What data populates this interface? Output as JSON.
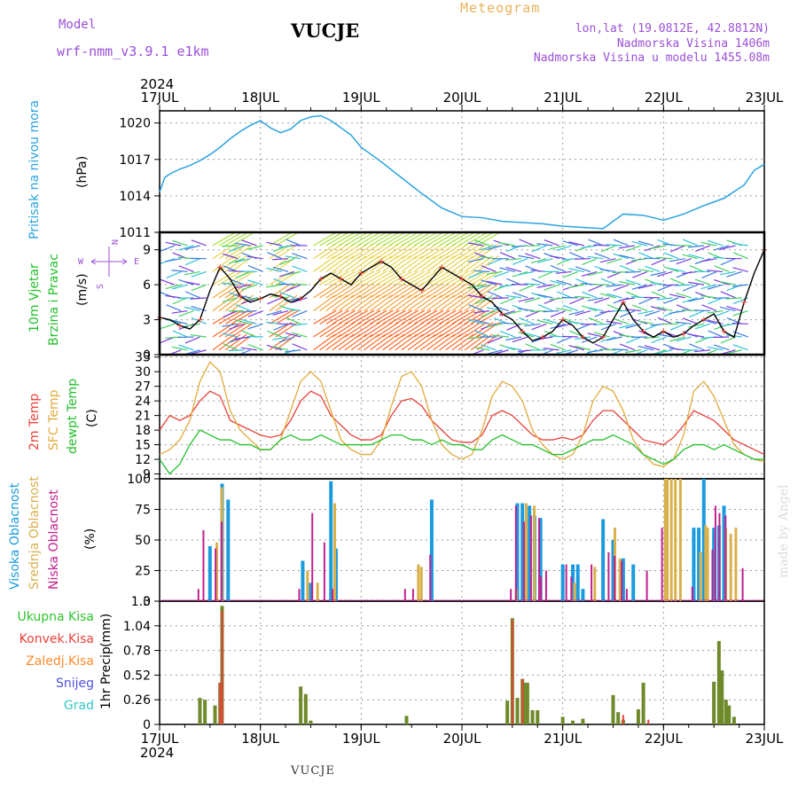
{
  "header": {
    "model_label": "Model",
    "model_version": "wrf-nmm_v3.9.1  e1km",
    "station": "VUCJE",
    "meteogram_label": "Meteogram",
    "lonlat": "lon,lat (19.0812E, 42.8812N)",
    "altitude": "Nadmorska Visina 1406m",
    "altitude_model": "Nadmorska Visina u modelu 1455.08m",
    "year": "2024",
    "footer_station": "VUCJE",
    "credit": "made by Angel"
  },
  "colors": {
    "pressure": "#2aa3e0",
    "temp2m": "#e8413a",
    "sfc_temp": "#e3a93a",
    "dewpoint": "#22c02a",
    "high_cloud": "#1a9be0",
    "mid_cloud": "#d9b04a",
    "low_cloud": "#c0208e",
    "total_precip": "#2fc62f",
    "conv_precip": "#e8413a",
    "frozen_precip": "#ff8a2a",
    "snow": "#5050e0",
    "hail": "#30c8c8",
    "precip_bar": "#6e8a2a",
    "label_purple": "#9a4fd6"
  },
  "chart_data": [
    {
      "type": "line",
      "name": "pressure",
      "ylabel": "Pritisak na nivou mora",
      "unit": "(hPa)",
      "x_ticks": [
        "17JUL",
        "18JUL",
        "19JUL",
        "20JUL",
        "21JUL",
        "22JUL",
        "23JUL"
      ],
      "ylim": [
        1011,
        1021
      ],
      "y_ticks": [
        1011,
        1014,
        1017,
        1020
      ],
      "grid": true,
      "series": [
        {
          "x": [
            0,
            0.05,
            0.1,
            0.2,
            0.3,
            0.4,
            0.5,
            0.6,
            0.7,
            0.8,
            0.9,
            1.0,
            1.1,
            1.2,
            1.3,
            1.4,
            1.5,
            1.6,
            1.7,
            1.8,
            1.9,
            2.0,
            2.2,
            2.4,
            2.6,
            2.8,
            3.0,
            3.2,
            3.4,
            3.6,
            3.8,
            4.0,
            4.2,
            4.4,
            4.6,
            4.8,
            5.0,
            5.2,
            5.4,
            5.6,
            5.8,
            5.9,
            6.0
          ],
          "y": [
            1014.3,
            1015.5,
            1015.8,
            1016.2,
            1016.5,
            1016.9,
            1017.4,
            1018.0,
            1018.7,
            1019.3,
            1019.8,
            1020.2,
            1019.6,
            1019.2,
            1019.5,
            1020.2,
            1020.5,
            1020.6,
            1020.2,
            1019.6,
            1019.0,
            1018.0,
            1016.8,
            1015.5,
            1014.2,
            1013.0,
            1012.3,
            1012.2,
            1011.9,
            1011.8,
            1011.7,
            1011.5,
            1011.4,
            1011.3,
            1012.5,
            1012.4,
            1012.0,
            1012.5,
            1013.2,
            1013.8,
            1014.9,
            1016.1,
            1016.6
          ]
        }
      ]
    },
    {
      "type": "line",
      "name": "wind",
      "ylabel_1": "10m Vjetar",
      "ylabel_2": "Brzina i Pravac",
      "unit": "(m/s)",
      "compass_n": "N",
      "compass_w": "W",
      "compass_e": "E",
      "compass_s": "S",
      "ylim": [
        0,
        10.5
      ],
      "y_ticks": [
        0,
        3,
        6,
        9
      ],
      "series": [
        {
          "x": [
            0,
            0.1,
            0.2,
            0.3,
            0.4,
            0.5,
            0.6,
            0.7,
            0.8,
            0.9,
            1.0,
            1.1,
            1.2,
            1.3,
            1.4,
            1.5,
            1.6,
            1.7,
            1.8,
            1.9,
            2.0,
            2.1,
            2.2,
            2.3,
            2.4,
            2.5,
            2.6,
            2.7,
            2.8,
            2.9,
            3.0,
            3.1,
            3.2,
            3.3,
            3.4,
            3.5,
            3.6,
            3.7,
            3.8,
            3.9,
            4.0,
            4.1,
            4.2,
            4.3,
            4.4,
            4.5,
            4.6,
            4.7,
            4.8,
            4.9,
            5.0,
            5.1,
            5.2,
            5.3,
            5.4,
            5.5,
            5.6,
            5.7,
            5.8,
            5.9,
            6.0
          ],
          "y": [
            3.2,
            3.0,
            2.5,
            2.2,
            3.0,
            5.5,
            7.5,
            6.5,
            5.0,
            4.5,
            4.8,
            5.2,
            5.0,
            4.5,
            4.8,
            5.5,
            6.5,
            7.0,
            6.5,
            6.0,
            7.0,
            7.5,
            8.0,
            7.5,
            6.5,
            6.0,
            5.5,
            6.5,
            7.5,
            7.0,
            6.5,
            6.0,
            5.0,
            4.5,
            3.5,
            3.0,
            2.0,
            1.2,
            1.5,
            2.0,
            3.0,
            2.5,
            1.5,
            1.0,
            1.5,
            3.0,
            4.5,
            3.0,
            2.0,
            1.5,
            2.0,
            1.5,
            1.8,
            2.5,
            3.0,
            3.5,
            2.0,
            1.5,
            4.5,
            7.0,
            9.0
          ]
        }
      ]
    },
    {
      "type": "line",
      "name": "temperature",
      "ylabel_1": "2m Temp",
      "ylabel_2": "SFC Temp",
      "ylabel_3": "dewpt Temp",
      "unit": "(C)",
      "ylim": [
        8,
        33.5
      ],
      "y_ticks": [
        9,
        12,
        15,
        18,
        21,
        24,
        27,
        30,
        33
      ],
      "series": [
        {
          "name": "2m Temp",
          "color": "#e8413a",
          "x": [
            0,
            0.1,
            0.2,
            0.3,
            0.4,
            0.5,
            0.6,
            0.7,
            0.8,
            0.9,
            1.0,
            1.1,
            1.2,
            1.3,
            1.4,
            1.5,
            1.6,
            1.7,
            1.8,
            1.9,
            2.0,
            2.1,
            2.2,
            2.3,
            2.4,
            2.5,
            2.6,
            2.7,
            2.8,
            2.9,
            3.0,
            3.1,
            3.2,
            3.3,
            3.4,
            3.5,
            3.6,
            3.7,
            3.8,
            3.9,
            4.0,
            4.1,
            4.2,
            4.3,
            4.4,
            4.5,
            4.6,
            4.7,
            4.8,
            4.9,
            5.0,
            5.1,
            5.2,
            5.3,
            5.4,
            5.5,
            5.6,
            5.7,
            5.8,
            5.9,
            6.0
          ],
          "y": [
            18,
            21,
            20,
            21,
            24,
            26,
            25,
            20,
            19,
            18,
            17,
            16.5,
            17,
            20,
            24,
            26,
            25,
            21,
            19,
            17,
            16,
            16,
            17,
            21,
            24,
            24.5,
            23,
            20,
            18,
            16,
            15.5,
            15.5,
            17,
            21,
            22,
            21,
            19,
            17,
            16,
            16,
            16.5,
            16,
            17,
            20,
            22,
            22,
            20,
            18,
            16,
            15.5,
            15,
            16.5,
            19,
            22,
            21,
            20,
            18,
            16,
            15,
            14,
            13
          ]
        },
        {
          "name": "SFC Temp",
          "color": "#e3a93a",
          "x": [
            0,
            0.1,
            0.2,
            0.3,
            0.4,
            0.5,
            0.6,
            0.7,
            0.8,
            0.9,
            1.0,
            1.1,
            1.2,
            1.3,
            1.4,
            1.5,
            1.6,
            1.7,
            1.8,
            1.9,
            2.0,
            2.1,
            2.2,
            2.3,
            2.4,
            2.5,
            2.6,
            2.7,
            2.8,
            2.9,
            3.0,
            3.1,
            3.2,
            3.3,
            3.4,
            3.5,
            3.6,
            3.7,
            3.8,
            3.9,
            4.0,
            4.1,
            4.2,
            4.3,
            4.4,
            4.5,
            4.6,
            4.7,
            4.8,
            4.9,
            5.0,
            5.1,
            5.2,
            5.3,
            5.4,
            5.5,
            5.6,
            5.7,
            5.8,
            5.9,
            6.0
          ],
          "y": [
            13,
            14,
            16,
            20,
            28,
            32,
            30,
            22,
            18,
            16,
            14,
            14,
            16,
            22,
            28,
            30,
            28,
            22,
            16,
            14,
            13,
            13,
            16,
            23,
            29,
            30,
            27,
            20,
            15,
            13,
            12,
            13,
            18,
            25,
            28,
            27,
            24,
            18,
            15,
            13,
            12,
            13,
            17,
            24,
            27,
            26,
            22,
            16,
            13,
            11,
            10.5,
            12,
            17,
            26,
            28,
            25,
            20,
            15,
            13,
            12,
            11.5
          ]
        },
        {
          "name": "dewpt Temp",
          "color": "#22c02a",
          "x": [
            0,
            0.1,
            0.2,
            0.3,
            0.4,
            0.5,
            0.6,
            0.7,
            0.8,
            0.9,
            1.0,
            1.1,
            1.2,
            1.3,
            1.4,
            1.5,
            1.6,
            1.7,
            1.8,
            1.9,
            2.0,
            2.1,
            2.2,
            2.3,
            2.4,
            2.5,
            2.6,
            2.7,
            2.8,
            2.9,
            3.0,
            3.1,
            3.2,
            3.3,
            3.4,
            3.5,
            3.6,
            3.7,
            3.8,
            3.9,
            4.0,
            4.1,
            4.2,
            4.3,
            4.4,
            4.5,
            4.6,
            4.7,
            4.8,
            4.9,
            5.0,
            5.1,
            5.2,
            5.3,
            5.4,
            5.5,
            5.6,
            5.7,
            5.8,
            5.9,
            6.0
          ],
          "y": [
            12,
            9,
            11,
            15,
            18,
            17,
            16,
            16,
            15,
            15,
            14,
            14,
            16,
            17,
            16,
            16,
            17,
            16,
            15,
            15,
            15,
            15,
            16,
            17,
            17,
            16,
            16,
            15,
            16,
            15,
            15,
            14,
            14,
            16,
            17,
            16,
            15,
            15,
            14,
            13,
            13,
            14,
            15,
            16,
            16,
            17,
            16,
            15,
            13,
            12,
            11,
            12,
            14,
            15,
            15,
            14,
            15,
            14,
            13,
            12,
            12
          ]
        }
      ]
    },
    {
      "type": "bar",
      "name": "cloud",
      "ylabel_1": "Visoka Oblacnost",
      "ylabel_2": "Srednja Oblacnost",
      "ylabel_3": "Niska Oblacnost",
      "unit": "(%)",
      "ylim": [
        0,
        100
      ],
      "y_ticks": [
        0,
        25,
        50,
        75,
        100
      ],
      "series": [
        {
          "name": "Visoka Oblacnost",
          "color": "#1a9be0",
          "x": [
            0.5,
            0.62,
            0.68,
            1.42,
            1.5,
            1.7,
            1.75,
            2.7,
            3.55,
            3.6,
            3.67,
            3.72,
            3.78,
            4.0,
            4.1,
            4.15,
            4.2,
            4.4,
            4.5,
            4.6,
            4.7,
            5.3,
            5.35,
            5.4,
            5.5,
            5.55,
            5.6
          ],
          "y": [
            45,
            96,
            83,
            33,
            15,
            98,
            43,
            83,
            80,
            80,
            78,
            70,
            68,
            30,
            30,
            30,
            10,
            67,
            50,
            35,
            30,
            60,
            60,
            100,
            60,
            62,
            78
          ]
        },
        {
          "name": "Srednja Oblacnost",
          "color": "#d9b04a",
          "x": [
            0.55,
            0.6,
            1.45,
            1.55,
            1.72,
            2.55,
            2.58,
            3.52,
            3.62,
            3.7,
            4.1,
            4.3,
            4.5,
            4.55,
            5.0,
            5.02,
            5.06,
            5.1,
            5.15,
            5.35,
            5.4,
            5.42,
            5.6,
            5.65,
            5.7
          ],
          "y": [
            48,
            93,
            25,
            15,
            80,
            30,
            28,
            10,
            80,
            78,
            15,
            28,
            60,
            35,
            100,
            100,
            100,
            100,
            100,
            40,
            62,
            60,
            60,
            55,
            60
          ]
        },
        {
          "name": "Niska Oblacnost",
          "color": "#c0208e",
          "x": [
            0.35,
            0.4,
            0.52,
            0.58,
            1.35,
            1.48,
            1.6,
            1.68,
            2.4,
            2.48,
            2.65,
            3.45,
            3.5,
            3.58,
            3.65,
            3.73,
            3.75,
            3.8,
            4.0,
            4.05,
            4.25,
            4.42,
            4.48,
            4.55,
            4.6,
            4.8,
            4.95,
            5.25,
            5.45,
            5.48,
            5.52,
            5.58,
            5.75
          ],
          "y": [
            10,
            58,
            43,
            65,
            10,
            72,
            48,
            10,
            10,
            10,
            38,
            10,
            78,
            65,
            70,
            68,
            20,
            25,
            30,
            20,
            30,
            40,
            37,
            33,
            10,
            25,
            60,
            12,
            42,
            78,
            72,
            70,
            27
          ]
        }
      ]
    },
    {
      "type": "bar",
      "name": "precip",
      "ylabel_1": "1hr Precip",
      "unit": "(mm)",
      "legend": [
        "Ukupna Kisa",
        "Konvek.Kisa",
        "Zaledj.Kisa",
        "Snijeg",
        "Grad"
      ],
      "ylim": [
        0,
        1.3
      ],
      "y_ticks": [
        0,
        0.26,
        0.52,
        0.78,
        1.04,
        1.3
      ],
      "series": [
        {
          "name": "Ukupna Kisa",
          "color": "#6e8a2a",
          "x": [
            0.4,
            0.45,
            0.55,
            0.6,
            0.62,
            1.4,
            1.45,
            1.5,
            2.45,
            3.45,
            3.5,
            3.55,
            3.6,
            3.62,
            3.65,
            3.7,
            3.75,
            4.0,
            4.1,
            4.2,
            4.5,
            4.55,
            4.6,
            4.75,
            4.8,
            5.5,
            5.55,
            5.58,
            5.62,
            5.65,
            5.7
          ],
          "y": [
            0.28,
            0.26,
            0.2,
            0.44,
            1.25,
            0.4,
            0.32,
            0.04,
            0.09,
            0.25,
            1.12,
            0.28,
            0.48,
            0.44,
            0.44,
            0.15,
            0.15,
            0.08,
            0.04,
            0.06,
            0.31,
            0.13,
            0.05,
            0.16,
            0.44,
            0.45,
            0.88,
            0.57,
            0.26,
            0.2,
            0.08
          ]
        },
        {
          "name": "Konvek.Kisa",
          "color": "#e8413a",
          "x": [
            0.6,
            0.62,
            3.5,
            3.6,
            4.6,
            4.85
          ],
          "y": [
            0.44,
            1.2,
            1.1,
            0.48,
            0.1,
            0.05
          ]
        }
      ],
      "x_ticks": [
        "17JUL",
        "18JUL",
        "19JUL",
        "20JUL",
        "21JUL",
        "22JUL",
        "23JUL"
      ]
    }
  ]
}
